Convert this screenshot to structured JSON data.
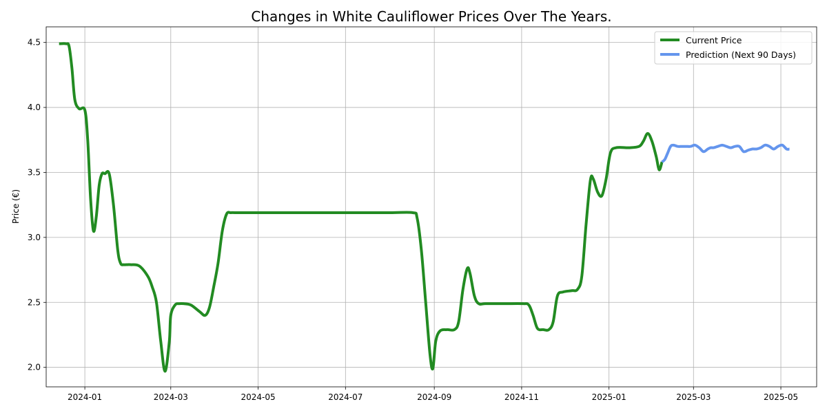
{
  "chart_data": {
    "type": "line",
    "title": "Changes in White Cauliflower Prices Over The Years.",
    "xlabel": "",
    "ylabel": "Price (€)",
    "xlim": [
      "2023-12-05",
      "2025-05-26"
    ],
    "ylim": [
      1.85,
      4.62
    ],
    "grid": true,
    "legend_position": "top-right",
    "x_ticks": [
      "2024-01",
      "2024-03",
      "2024-05",
      "2024-07",
      "2024-09",
      "2024-11",
      "2025-01",
      "2025-03",
      "2025-05"
    ],
    "y_ticks": [
      "2.0",
      "2.5",
      "3.0",
      "3.5",
      "4.0",
      "4.5"
    ],
    "series": [
      {
        "name": "Current Price",
        "color": "#228b22",
        "x": [
          "2023-12-14",
          "2023-12-19",
          "2023-12-21",
          "2023-12-23",
          "2023-12-25",
          "2023-12-28",
          "2024-01-01",
          "2024-01-03",
          "2024-01-05",
          "2024-01-07",
          "2024-01-09",
          "2024-01-11",
          "2024-01-13",
          "2024-01-15",
          "2024-01-18",
          "2024-01-21",
          "2024-01-24",
          "2024-01-26",
          "2024-01-28",
          "2024-01-30",
          "2024-02-02",
          "2024-02-08",
          "2024-02-14",
          "2024-02-17",
          "2024-02-20",
          "2024-02-23",
          "2024-02-26",
          "2024-02-29",
          "2024-03-01",
          "2024-03-04",
          "2024-03-07",
          "2024-03-10",
          "2024-03-15",
          "2024-03-21",
          "2024-03-25",
          "2024-03-28",
          "2024-03-31",
          "2024-04-03",
          "2024-04-06",
          "2024-04-09",
          "2024-04-12",
          "2024-04-16",
          "2024-05-01",
          "2024-06-01",
          "2024-07-01",
          "2024-08-01",
          "2024-08-17",
          "2024-08-20",
          "2024-08-23",
          "2024-08-26",
          "2024-08-29",
          "2024-08-31",
          "2024-09-02",
          "2024-09-05",
          "2024-09-10",
          "2024-09-15",
          "2024-09-18",
          "2024-09-21",
          "2024-09-24",
          "2024-09-26",
          "2024-09-29",
          "2024-10-02",
          "2024-10-07",
          "2024-10-20",
          "2024-11-02",
          "2024-11-06",
          "2024-11-09",
          "2024-11-12",
          "2024-11-16",
          "2024-11-20",
          "2024-11-23",
          "2024-11-26",
          "2024-11-30",
          "2024-12-06",
          "2024-12-10",
          "2024-12-13",
          "2024-12-16",
          "2024-12-19",
          "2024-12-21",
          "2024-12-24",
          "2024-12-27",
          "2024-12-30",
          "2025-01-02",
          "2025-01-06",
          "2025-01-15",
          "2025-01-22",
          "2025-01-25",
          "2025-01-28",
          "2025-01-31",
          "2025-02-03",
          "2025-02-05",
          "2025-02-07"
        ],
        "y": [
          4.49,
          4.49,
          4.47,
          4.3,
          4.06,
          3.99,
          3.98,
          3.75,
          3.3,
          3.05,
          3.16,
          3.4,
          3.49,
          3.49,
          3.49,
          3.25,
          2.9,
          2.8,
          2.79,
          2.79,
          2.79,
          2.78,
          2.7,
          2.62,
          2.5,
          2.2,
          1.97,
          2.2,
          2.4,
          2.48,
          2.49,
          2.49,
          2.48,
          2.43,
          2.4,
          2.46,
          2.62,
          2.8,
          3.05,
          3.18,
          3.19,
          3.19,
          3.19,
          3.19,
          3.19,
          3.19,
          3.19,
          3.15,
          2.9,
          2.5,
          2.1,
          1.99,
          2.2,
          2.28,
          2.29,
          2.29,
          2.35,
          2.6,
          2.76,
          2.72,
          2.55,
          2.49,
          2.49,
          2.49,
          2.49,
          2.48,
          2.4,
          2.3,
          2.29,
          2.29,
          2.35,
          2.55,
          2.58,
          2.59,
          2.6,
          2.7,
          3.1,
          3.44,
          3.45,
          3.35,
          3.32,
          3.45,
          3.65,
          3.69,
          3.69,
          3.7,
          3.74,
          3.8,
          3.74,
          3.62,
          3.52,
          3.58
        ]
      },
      {
        "name": "Prediction (Next 90 Days)",
        "color": "#6495ed",
        "x": [
          "2025-02-07",
          "2025-02-09",
          "2025-02-11",
          "2025-02-13",
          "2025-02-15",
          "2025-02-18",
          "2025-02-21",
          "2025-02-24",
          "2025-02-27",
          "2025-03-02",
          "2025-03-05",
          "2025-03-08",
          "2025-03-11",
          "2025-03-13",
          "2025-03-15",
          "2025-03-18",
          "2025-03-21",
          "2025-03-24",
          "2025-03-27",
          "2025-03-30",
          "2025-04-02",
          "2025-04-05",
          "2025-04-08",
          "2025-04-11",
          "2025-04-14",
          "2025-04-17",
          "2025-04-20",
          "2025-04-23",
          "2025-04-26",
          "2025-04-29",
          "2025-05-02",
          "2025-05-05",
          "2025-05-07"
        ],
        "y": [
          3.58,
          3.6,
          3.65,
          3.7,
          3.71,
          3.7,
          3.7,
          3.7,
          3.7,
          3.71,
          3.69,
          3.66,
          3.68,
          3.69,
          3.69,
          3.7,
          3.71,
          3.7,
          3.69,
          3.7,
          3.7,
          3.66,
          3.67,
          3.68,
          3.68,
          3.69,
          3.71,
          3.7,
          3.68,
          3.7,
          3.71,
          3.68,
          3.68
        ]
      }
    ]
  }
}
